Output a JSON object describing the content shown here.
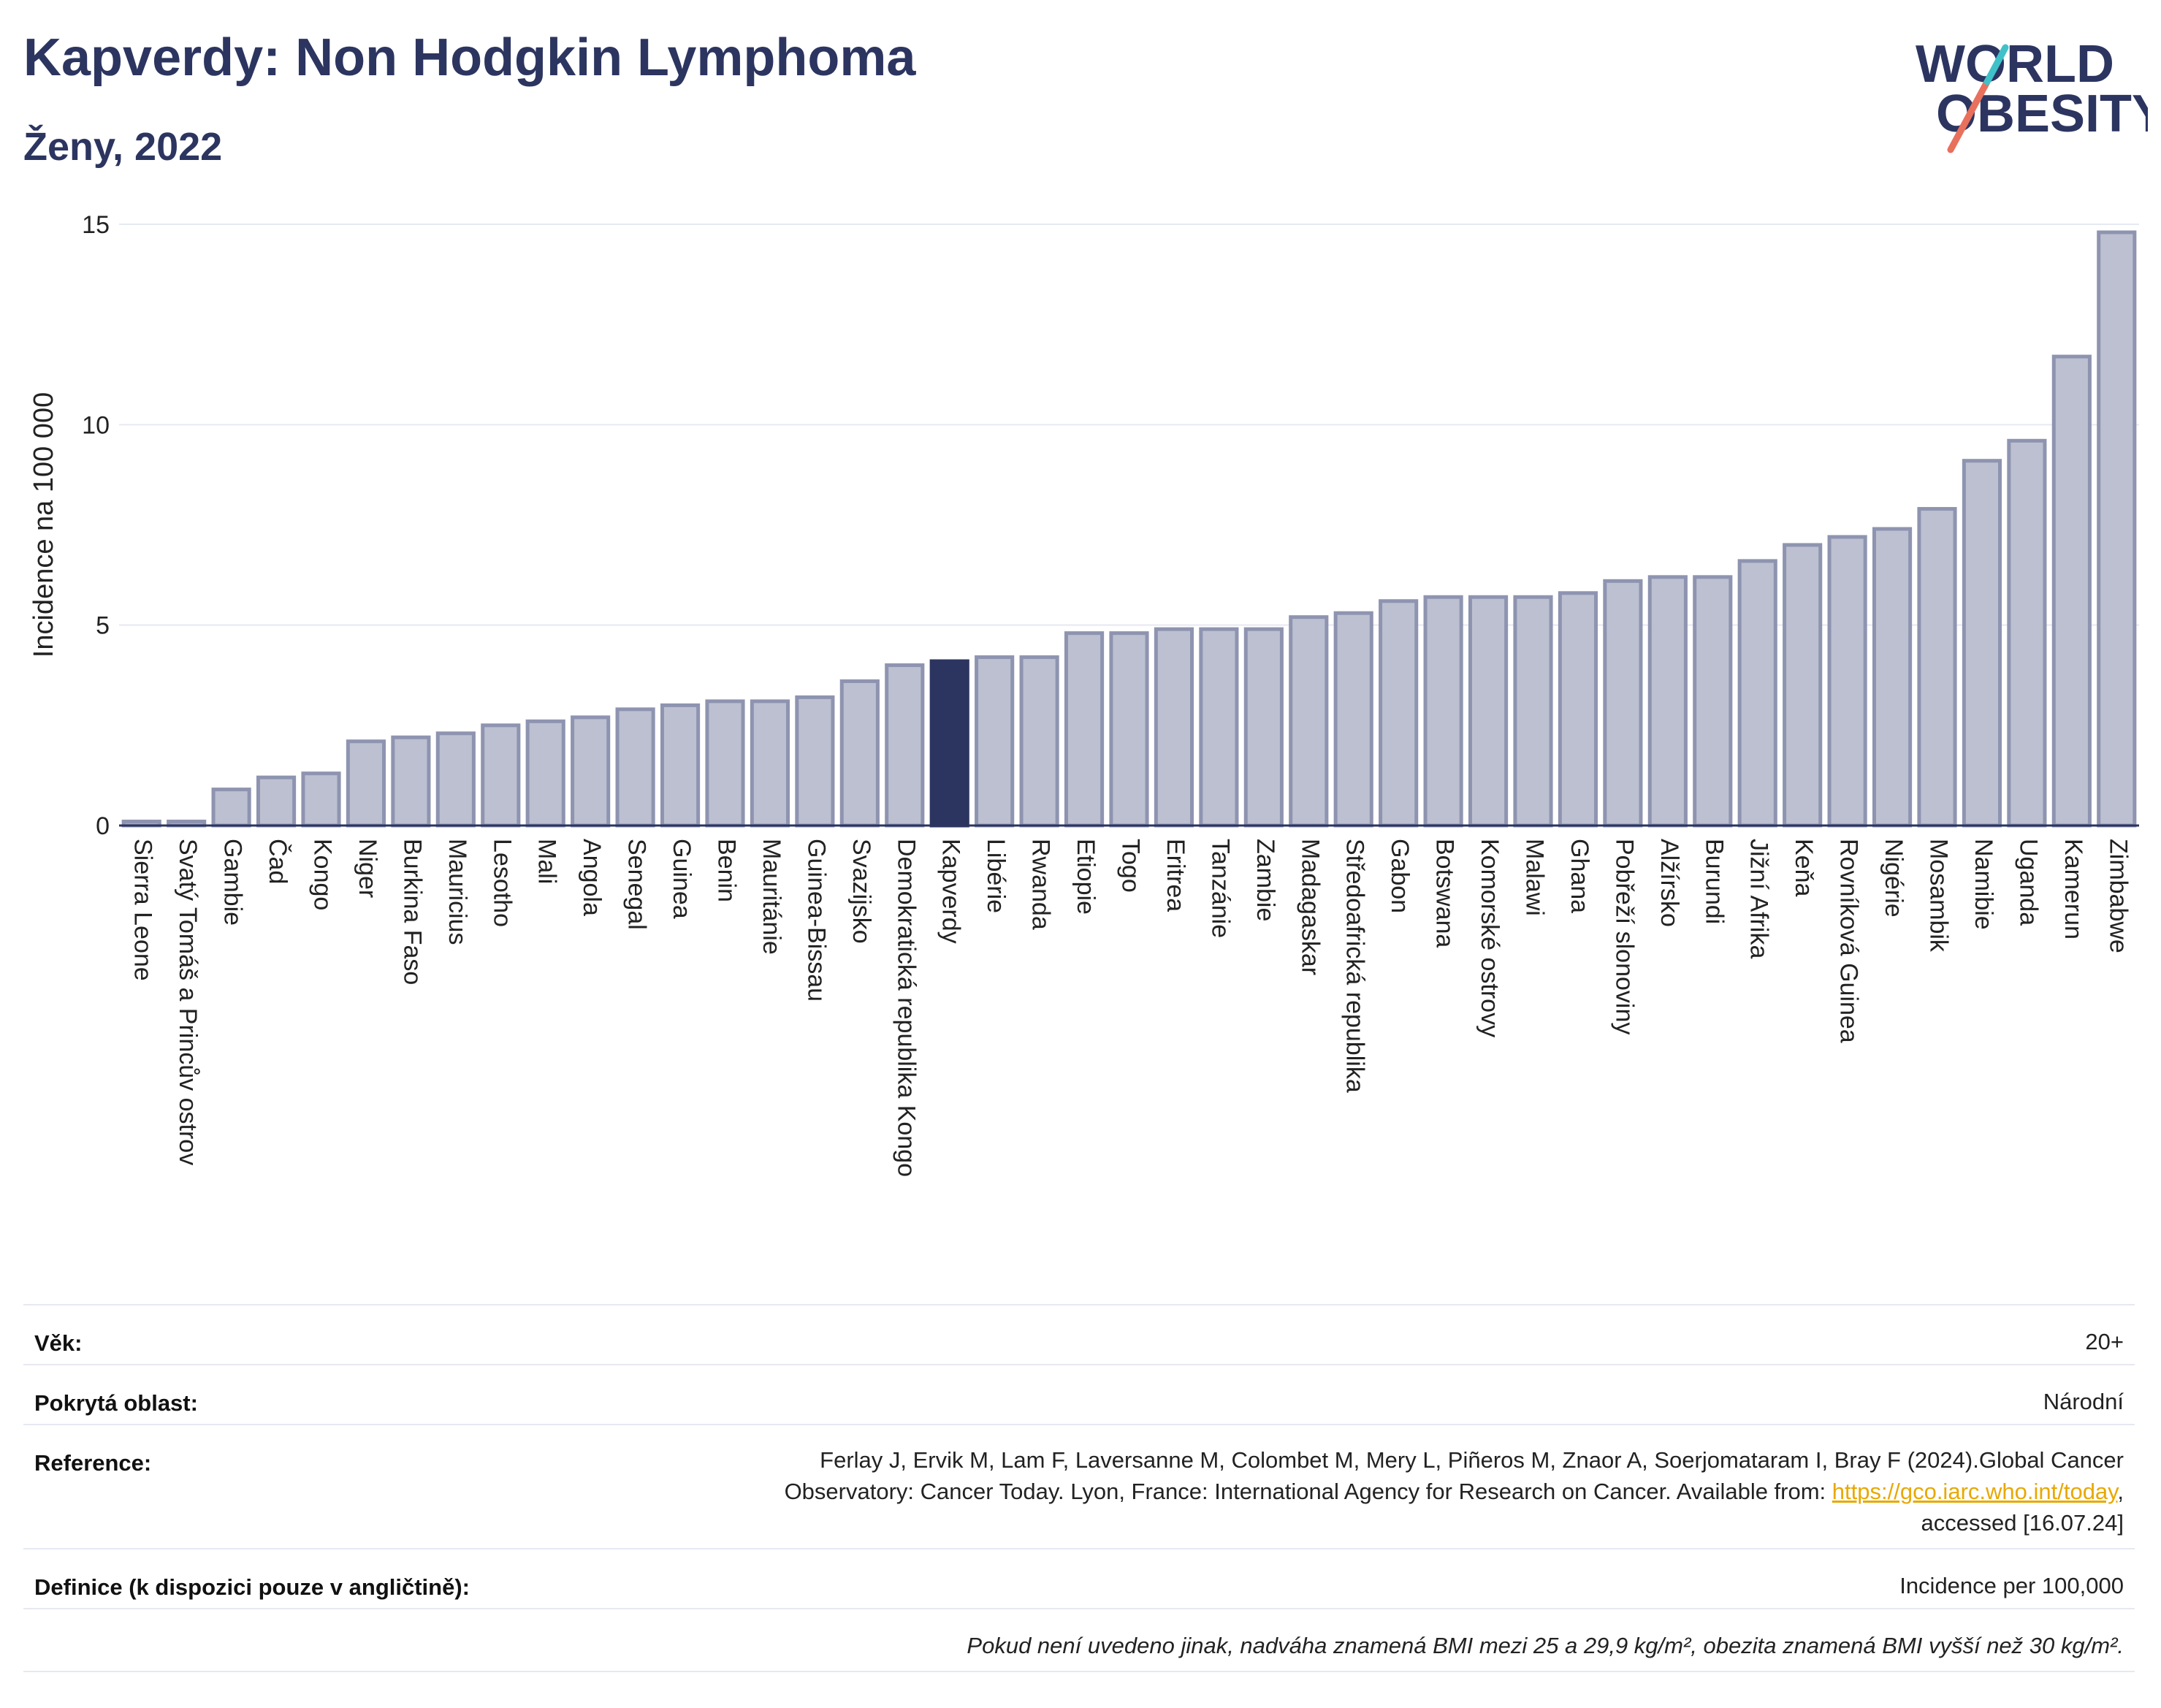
{
  "header": {
    "title": "Kapverdy: Non Hodgkin Lymphoma",
    "subtitle": "Ženy, 2022"
  },
  "logo": {
    "line1": "WORLD",
    "line2": "OBESITY"
  },
  "colors": {
    "bar": "#bcc0d0",
    "bar_border": "#8e94b0",
    "highlight": "#2c3560",
    "title": "#2c3560",
    "grid": "#e6e9f2"
  },
  "chart_data": {
    "type": "bar",
    "title": "Kapverdy: Non Hodgkin Lymphoma",
    "subtitle": "Ženy, 2022",
    "xlabel": "",
    "ylabel": "Incidence na 100 000",
    "ylim": [
      0,
      15
    ],
    "yticks": [
      0,
      5,
      10,
      15
    ],
    "grid": true,
    "highlight": "Kapverdy",
    "categories": [
      "Sierra Leone",
      "Svatý Tomáš a Princův ostrov",
      "Gambie",
      "Čad",
      "Kongo",
      "Niger",
      "Burkina Faso",
      "Mauricius",
      "Lesotho",
      "Mali",
      "Angola",
      "Senegal",
      "Guinea",
      "Benin",
      "Mauritánie",
      "Guinea-Bissau",
      "Svazijsko",
      "Demokratická republika Kongo",
      "Kapverdy",
      "Libérie",
      "Rwanda",
      "Etiopie",
      "Togo",
      "Eritrea",
      "Tanzánie",
      "Zambie",
      "Madagaskar",
      "Středoafrická republika",
      "Gabon",
      "Botswana",
      "Komorské ostrovy",
      "Malawi",
      "Ghana",
      "Pobřeží slonoviny",
      "Alžírsko",
      "Burundi",
      "Jižní Afrika",
      "Keňa",
      "Rovníková Guinea",
      "Nigérie",
      "Mosambik",
      "Namibie",
      "Uganda",
      "Kamerun",
      "Zimbabwe"
    ],
    "values": [
      0.1,
      0.1,
      0.9,
      1.2,
      1.3,
      2.1,
      2.2,
      2.3,
      2.5,
      2.6,
      2.7,
      2.9,
      3.0,
      3.1,
      3.1,
      3.2,
      3.6,
      4.0,
      4.1,
      4.2,
      4.2,
      4.8,
      4.8,
      4.9,
      4.9,
      4.9,
      5.2,
      5.3,
      5.6,
      5.7,
      5.7,
      5.7,
      5.8,
      6.1,
      6.2,
      6.2,
      6.6,
      7.0,
      7.2,
      7.4,
      7.9,
      9.1,
      9.6,
      11.7,
      14.8
    ]
  },
  "info": {
    "age_label": "Věk:",
    "age_value": "20+",
    "coverage_label": "Pokrytá oblast:",
    "coverage_value": "Národní",
    "reference_label": "Reference:",
    "reference_line1": "Ferlay J, Ervik M, Lam F, Laversanne M, Colombet M, Mery L, Piñeros M, Znaor A, Soerjomataram I, Bray F (2024).Global Cancer",
    "reference_line2": "Observatory: Cancer Today. Lyon, France: International Agency for Research on Cancer. Available from: ",
    "reference_link": "https://gco.iarc.who.int/today",
    "reference_line2_end": ",",
    "reference_line3": "accessed [16.07.24]",
    "definition_label": "Definice (k dispozici pouze v angličtině):",
    "definition_value": "Incidence per 100,000",
    "note": "Pokud není uvedeno jinak, nadváha znamená BMI mezi 25 a 29,9 kg/m², obezita znamená BMI vyšší než 30 kg/m²."
  }
}
